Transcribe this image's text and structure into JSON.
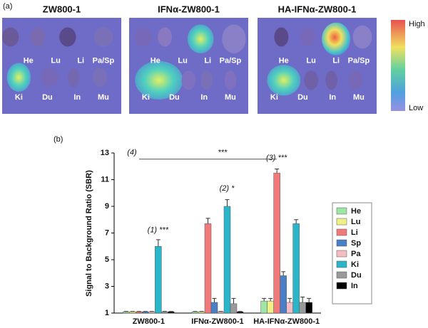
{
  "panel_labels": [
    "(a)",
    "(b)"
  ],
  "images": [
    {
      "title": "ZW800-1",
      "labels": [
        "He",
        "Lu",
        "Li",
        "Pa/Sp",
        "Ki",
        "Du",
        "In",
        "Mu"
      ]
    },
    {
      "title": "IFNα-ZW800-1",
      "labels": [
        "He",
        "Lu",
        "Li",
        "Pa/Sp",
        "Ki",
        "Du",
        "In",
        "Mu"
      ]
    },
    {
      "title": "HA-IFNα-ZW800-1",
      "labels": [
        "He",
        "Lu",
        "Li",
        "Pa/Sp",
        "Ki",
        "Du",
        "In",
        "Mu"
      ]
    }
  ],
  "colorbar": {
    "high": "High",
    "low": "Low"
  },
  "chart_data": {
    "type": "bar",
    "y_label": "Signal to Background Ratio (SBR)",
    "categories": [
      "ZW800-1",
      "IFNα-ZW800-1",
      "HA-IFNα-ZW800-1"
    ],
    "series": [
      {
        "name": "He",
        "color": "#9ee6a6",
        "values": [
          1.1,
          1.1,
          1.9
        ],
        "errors": [
          0.02,
          0.02,
          0.2
        ]
      },
      {
        "name": "Lu",
        "color": "#f0f08a",
        "values": [
          1.1,
          1.1,
          1.9
        ],
        "errors": [
          0.02,
          0.02,
          0.2
        ]
      },
      {
        "name": "Li",
        "color": "#f07a7a",
        "values": [
          1.1,
          7.7,
          11.5
        ],
        "errors": [
          0.02,
          0.4,
          0.3
        ]
      },
      {
        "name": "Sp",
        "color": "#4a7fc8",
        "values": [
          1.1,
          1.8,
          3.8
        ],
        "errors": [
          0.02,
          0.3,
          0.3
        ]
      },
      {
        "name": "Pa",
        "color": "#f4bcc4",
        "values": [
          1.1,
          1.1,
          1.8
        ],
        "errors": [
          0.02,
          0.02,
          0.3
        ]
      },
      {
        "name": "Ki",
        "color": "#2ab5c8",
        "values": [
          6.0,
          9.0,
          7.7
        ],
        "errors": [
          0.5,
          0.5,
          0.3
        ]
      },
      {
        "name": "Du",
        "color": "#9a9a9a",
        "values": [
          1.1,
          1.7,
          1.8
        ],
        "errors": [
          0.02,
          0.4,
          0.4
        ]
      },
      {
        "name": "In",
        "color": "#000000",
        "values": [
          1.1,
          1.1,
          1.8
        ],
        "errors": [
          0.02,
          0.02,
          0.3
        ]
      }
    ],
    "annotations": [
      "(1) ***",
      "(2) *",
      "(3) ***",
      "(4)",
      "***"
    ],
    "ylim": [
      1,
      13
    ],
    "yticks": [
      1,
      3,
      5,
      7,
      9,
      11,
      13
    ],
    "legend": "right"
  }
}
